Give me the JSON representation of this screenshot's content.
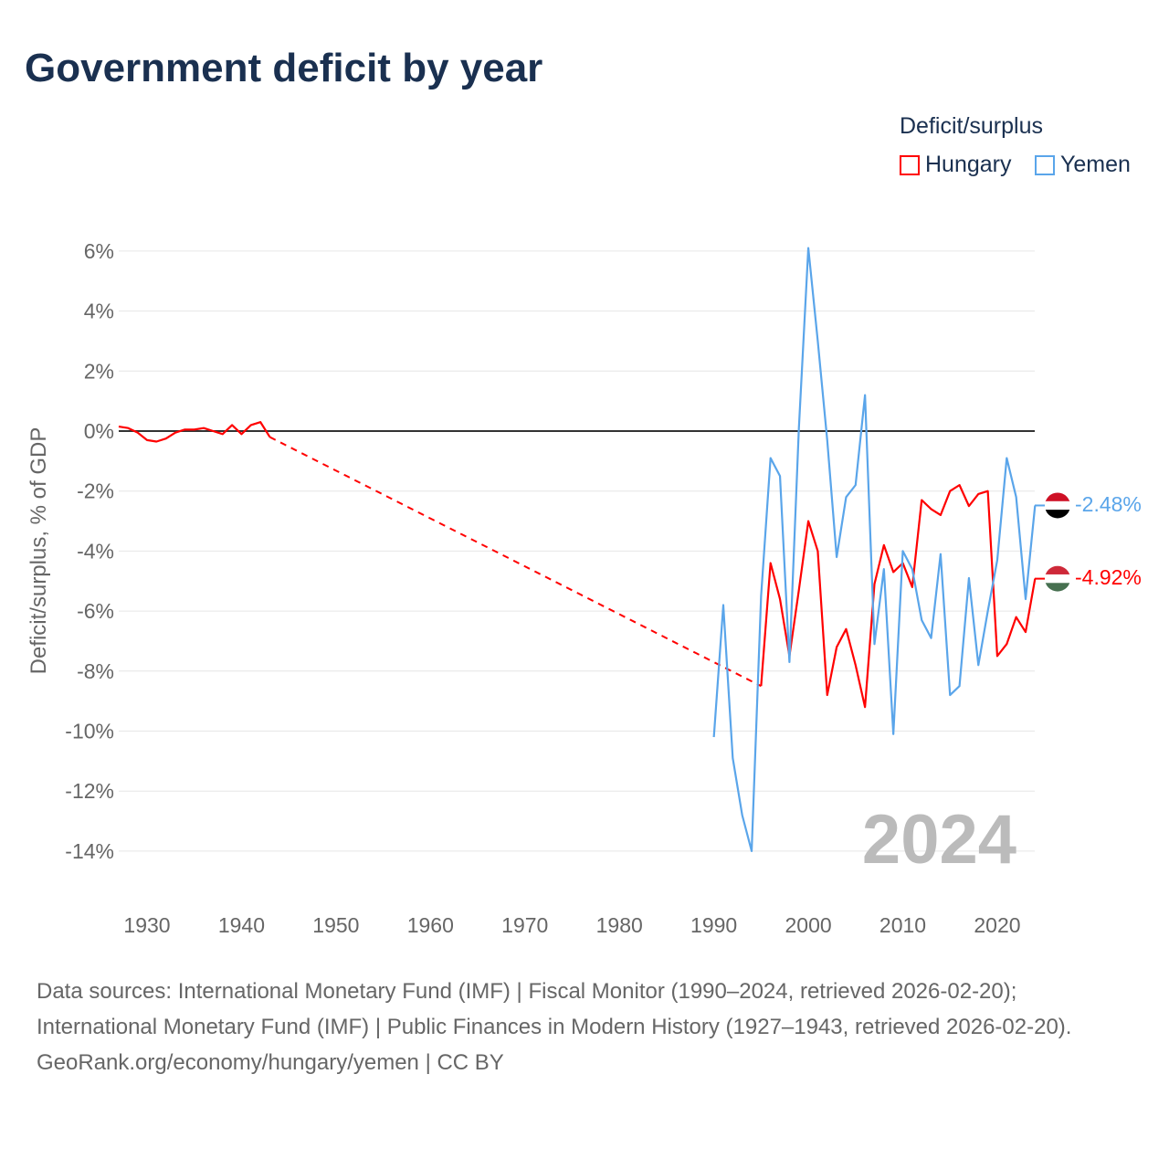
{
  "title": "Government deficit by year",
  "legend": {
    "title": "Deficit/surplus",
    "items": [
      {
        "name": "Hungary",
        "color": "#ff0000"
      },
      {
        "name": "Yemen",
        "color": "#5aa5ea"
      }
    ]
  },
  "year_label": "2024",
  "end_labels": {
    "yemen": "-2.48%",
    "hungary": "-4.92%"
  },
  "footer": {
    "sources": "Data sources: International Monetary Fund (IMF) | Fiscal Monitor (1990–2024, retrieved 2026-02-20); International Monetary Fund (IMF) | Public Finances in Modern History (1927–1943, retrieved 2026-02-20).",
    "credit": "GeoRank.org/economy/hungary/yemen | CC BY"
  },
  "chart_data": {
    "type": "line",
    "title": "Government deficit by year",
    "ylabel": "Deficit/surplus, % of GDP",
    "xlabel": "",
    "ylim": [
      -14,
      6
    ],
    "xlim": [
      1927,
      2024
    ],
    "yticks": [
      6,
      4,
      2,
      0,
      -2,
      -4,
      -6,
      -8,
      -10,
      -12,
      -14
    ],
    "ytick_labels": [
      "6%",
      "4%",
      "2%",
      "0%",
      "-2%",
      "-4%",
      "-6%",
      "-8%",
      "-10%",
      "-12%",
      "-14%"
    ],
    "xticks": [
      1930,
      1940,
      1950,
      1960,
      1970,
      1980,
      1990,
      2000,
      2010,
      2020
    ],
    "xtick_labels": [
      "1930",
      "1940",
      "1950",
      "1960",
      "1970",
      "1980",
      "1990",
      "2000",
      "2010",
      "2020"
    ],
    "grid": true,
    "legend_position": "top-right",
    "series": [
      {
        "name": "Hungary",
        "color": "#ff0000",
        "segments": [
          {
            "x": [
              1927,
              1928,
              1929,
              1930,
              1931,
              1932,
              1933,
              1934,
              1935,
              1936,
              1937,
              1938,
              1939,
              1940,
              1941,
              1942,
              1943
            ],
            "y": [
              0.15,
              0.1,
              -0.05,
              -0.3,
              -0.35,
              -0.25,
              -0.05,
              0.05,
              0.05,
              0.1,
              0.0,
              -0.1,
              0.2,
              -0.1,
              0.2,
              0.3,
              -0.2
            ]
          },
          {
            "x": [
              1995,
              1996,
              1997,
              1998,
              1999,
              2000,
              2001,
              2002,
              2003,
              2004,
              2005,
              2006,
              2007,
              2008,
              2009,
              2010,
              2011,
              2012,
              2013,
              2014,
              2015,
              2016,
              2017,
              2018,
              2019,
              2020,
              2021,
              2022,
              2023,
              2024
            ],
            "y": [
              -8.5,
              -4.4,
              -5.6,
              -7.5,
              -5.3,
              -3.0,
              -4.0,
              -8.8,
              -7.2,
              -6.6,
              -7.8,
              -9.2,
              -5.1,
              -3.8,
              -4.7,
              -4.4,
              -5.2,
              -2.3,
              -2.6,
              -2.8,
              -2.0,
              -1.8,
              -2.5,
              -2.1,
              -2.0,
              -7.5,
              -7.1,
              -6.2,
              -6.7,
              -4.92
            ]
          }
        ]
      },
      {
        "name": "Yemen",
        "color": "#5aa5ea",
        "segments": [
          {
            "x": [
              1990,
              1991,
              1992,
              1993,
              1994,
              1995,
              1996,
              1997,
              1998,
              1999,
              2000,
              2001,
              2002,
              2003,
              2004,
              2005,
              2006,
              2007,
              2008,
              2009,
              2010,
              2011,
              2012,
              2013,
              2014,
              2015,
              2016,
              2017,
              2018,
              2019,
              2020,
              2021,
              2022,
              2023,
              2024
            ],
            "y": [
              -10.2,
              -5.8,
              -10.9,
              -12.8,
              -14.0,
              -5.5,
              -0.9,
              -1.5,
              -7.7,
              0.1,
              6.1,
              3.0,
              -0.3,
              -4.2,
              -2.2,
              -1.8,
              1.2,
              -7.1,
              -4.6,
              -10.1,
              -4.0,
              -4.6,
              -6.3,
              -6.9,
              -4.1,
              -8.8,
              -8.5,
              -4.9,
              -7.8,
              -6.0,
              -4.3,
              -0.9,
              -2.2,
              -5.6,
              -2.48
            ]
          }
        ]
      }
    ]
  }
}
